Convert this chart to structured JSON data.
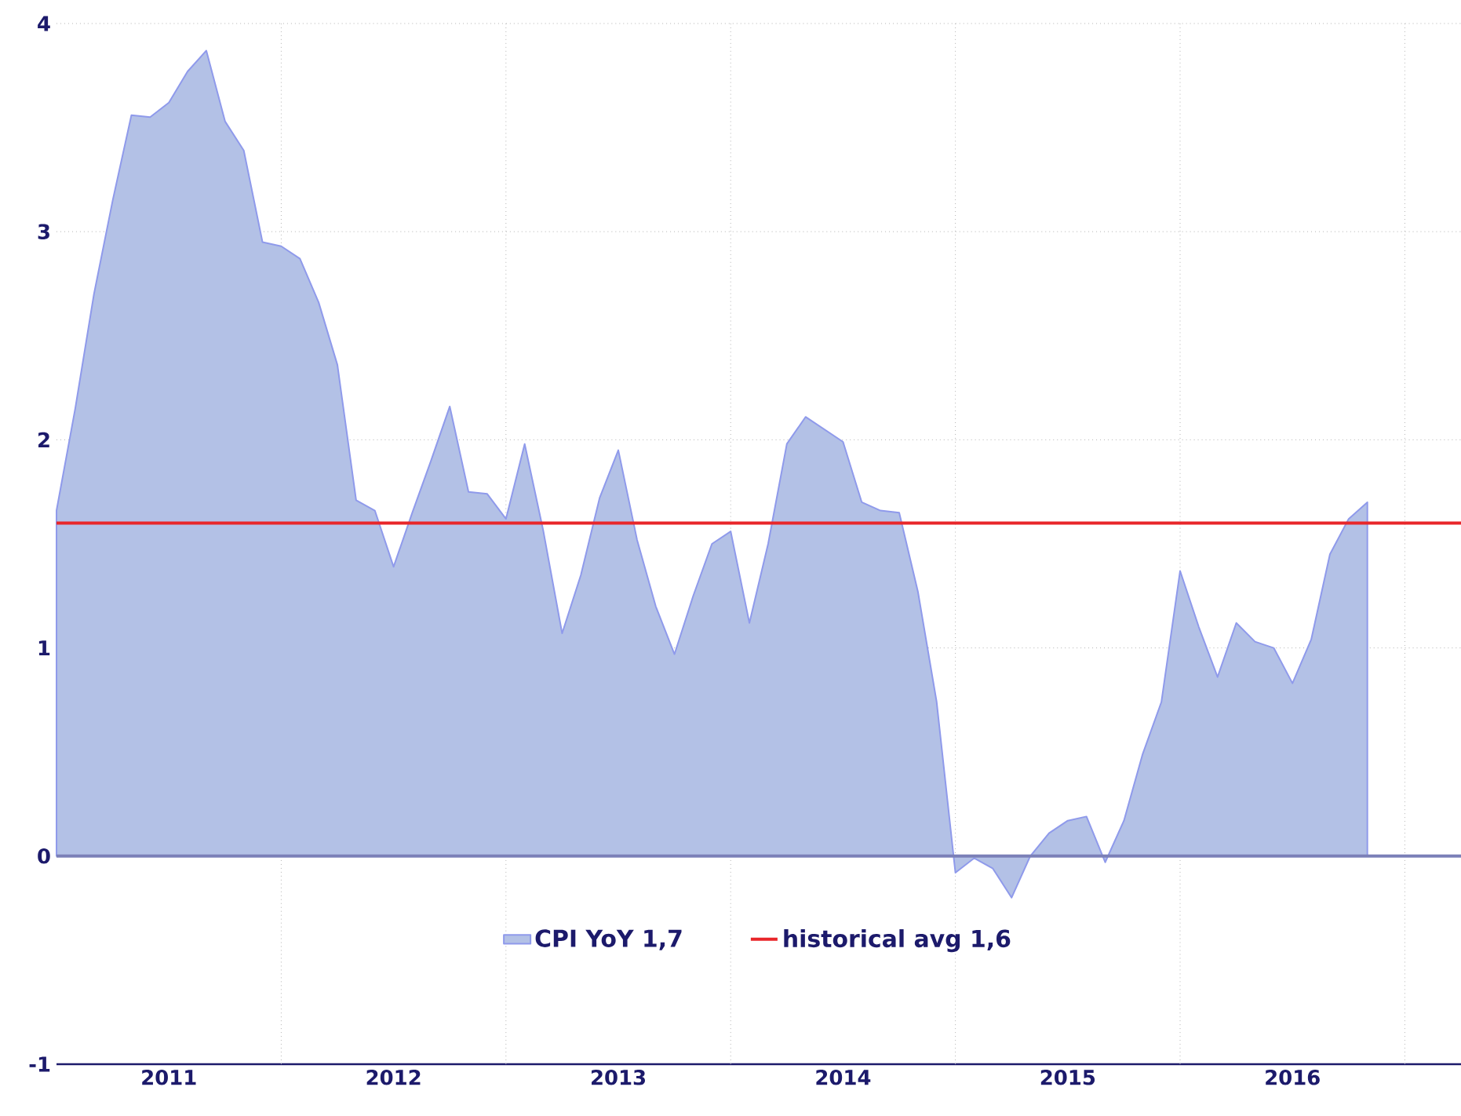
{
  "chart_data": {
    "type": "area",
    "x": [
      "2011-01",
      "2011-02",
      "2011-03",
      "2011-04",
      "2011-05",
      "2011-06",
      "2011-07",
      "2011-08",
      "2011-09",
      "2011-10",
      "2011-11",
      "2011-12",
      "2012-01",
      "2012-02",
      "2012-03",
      "2012-04",
      "2012-05",
      "2012-06",
      "2012-07",
      "2012-08",
      "2012-09",
      "2012-10",
      "2012-11",
      "2012-12",
      "2013-01",
      "2013-02",
      "2013-03",
      "2013-04",
      "2013-05",
      "2013-06",
      "2013-07",
      "2013-08",
      "2013-09",
      "2013-10",
      "2013-11",
      "2013-12",
      "2014-01",
      "2014-02",
      "2014-03",
      "2014-04",
      "2014-05",
      "2014-06",
      "2014-07",
      "2014-08",
      "2014-09",
      "2014-10",
      "2014-11",
      "2014-12",
      "2015-01",
      "2015-02",
      "2015-03",
      "2015-04",
      "2015-05",
      "2015-06",
      "2015-07",
      "2015-08",
      "2015-09",
      "2015-10",
      "2015-11",
      "2015-12",
      "2016-01",
      "2016-02",
      "2016-03",
      "2016-04",
      "2016-05",
      "2016-06",
      "2016-07",
      "2016-08",
      "2016-09",
      "2016-10",
      "2016-11"
    ],
    "series": [
      {
        "name": "CPI YoY 1,7",
        "color": "#b3c1e6",
        "values": [
          1.66,
          2.15,
          2.7,
          3.15,
          3.56,
          3.55,
          3.62,
          3.77,
          3.87,
          3.53,
          3.39,
          2.95,
          2.93,
          2.87,
          2.66,
          2.36,
          1.71,
          1.66,
          1.39,
          1.65,
          1.9,
          2.16,
          1.75,
          1.74,
          1.62,
          1.98,
          1.56,
          1.07,
          1.35,
          1.72,
          1.95,
          1.52,
          1.2,
          0.97,
          1.25,
          1.5,
          1.56,
          1.12,
          1.5,
          1.98,
          2.11,
          2.05,
          1.99,
          1.7,
          1.66,
          1.65,
          1.27,
          0.74,
          -0.08,
          -0.01,
          -0.06,
          -0.2,
          0.0,
          0.11,
          0.17,
          0.19,
          -0.03,
          0.17,
          0.49,
          0.74,
          1.37,
          1.1,
          0.86,
          1.12,
          1.03,
          1.0,
          0.83,
          1.04,
          1.45,
          1.62,
          1.7
        ]
      }
    ],
    "xlim": [
      "2011-01",
      "2017-04"
    ],
    "xticks": [
      {
        "value": "2011-07",
        "label": "2011"
      },
      {
        "value": "2012-07",
        "label": "2012"
      },
      {
        "value": "2013-07",
        "label": "2013"
      },
      {
        "value": "2014-07",
        "label": "2014"
      },
      {
        "value": "2015-07",
        "label": "2015"
      },
      {
        "value": "2016-07",
        "label": "2016"
      },
      {
        "value": "2012-01",
        "label": null
      },
      {
        "value": "2013-01",
        "label": null
      },
      {
        "value": "2014-01",
        "label": null
      },
      {
        "value": "2015-01",
        "label": null
      },
      {
        "value": "2016-01",
        "label": null
      },
      {
        "value": "2017-01",
        "label": null
      }
    ],
    "ylim": [
      -1,
      4
    ],
    "yticks": [
      -1,
      0,
      1,
      2,
      3,
      4
    ],
    "ref_lines": [
      {
        "axis": "y",
        "value": 0,
        "color": "#7b80b8"
      },
      {
        "axis": "y",
        "value": 1.6,
        "label": "historical avg 1,6",
        "color": "#e8262a"
      }
    ],
    "grid": true,
    "legend": "bottom"
  }
}
